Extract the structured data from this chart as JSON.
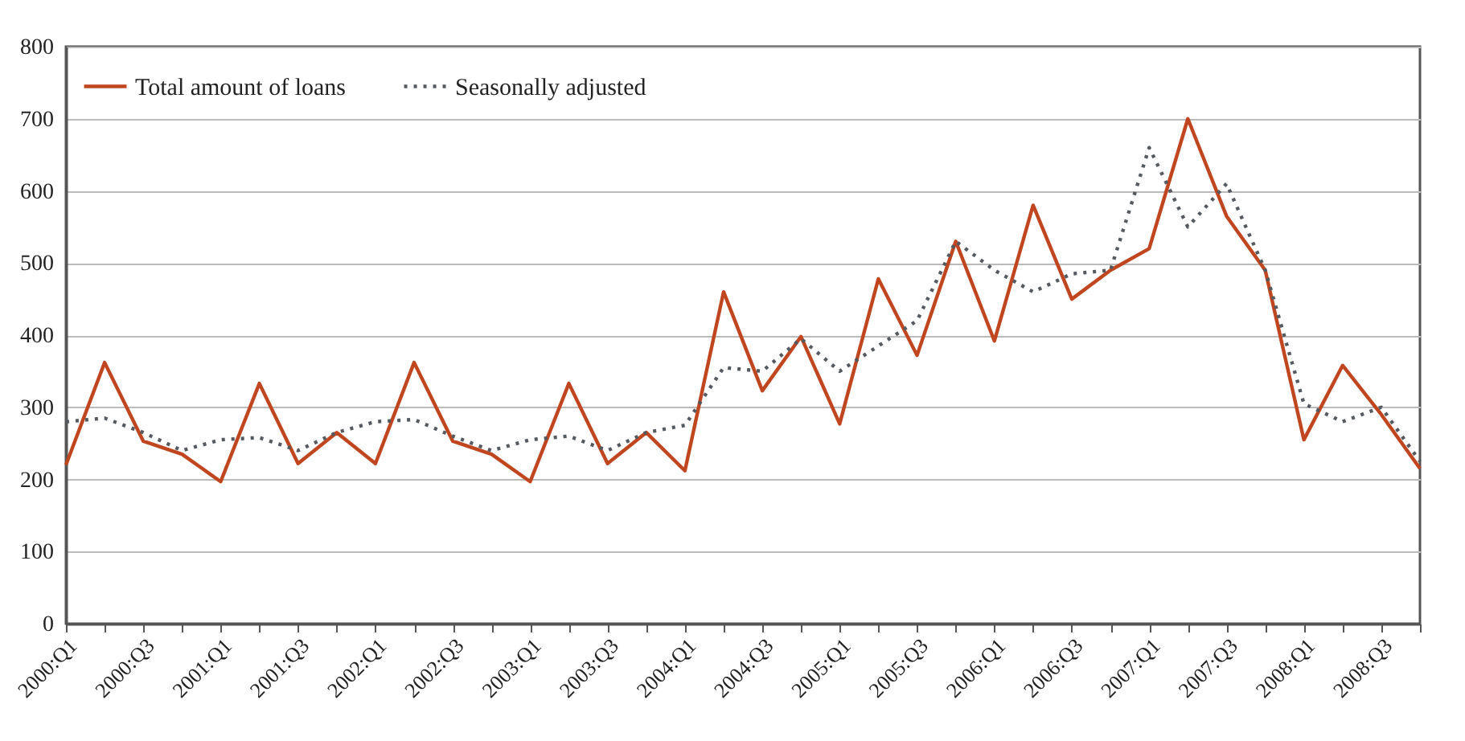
{
  "chart_data": {
    "type": "line",
    "categories": [
      "2000:Q1",
      null,
      "2000:Q3",
      null,
      "2001:Q1",
      null,
      "2001:Q3",
      null,
      "2002:Q1",
      null,
      "2002:Q3",
      null,
      "2003:Q1",
      null,
      "2003:Q3",
      null,
      "2004:Q1",
      null,
      "2004:Q3",
      null,
      "2005:Q1",
      null,
      "2005:Q3",
      null,
      "2006:Q1",
      null,
      "2006:Q3",
      null,
      "2007:Q1",
      null,
      "2007:Q3",
      null,
      "2008:Q1",
      null,
      "2008:Q3",
      null
    ],
    "series": [
      {
        "name": "Total amount of loans",
        "color": "#c0461f",
        "line_style": "solid",
        "values": [
          220,
          362,
          253,
          235,
          197,
          333,
          222,
          265,
          222,
          362,
          253,
          235,
          197,
          333,
          222,
          265,
          212,
          460,
          323,
          398,
          277,
          478,
          372,
          530,
          392,
          580,
          450,
          490,
          520,
          700,
          565,
          490,
          255,
          358,
          290,
          215
        ]
      },
      {
        "name": "Seasonally adjusted",
        "color": "#555a60",
        "line_style": "dotted",
        "values": [
          280,
          285,
          265,
          240,
          255,
          258,
          240,
          265,
          280,
          283,
          260,
          240,
          255,
          260,
          240,
          265,
          275,
          355,
          350,
          395,
          350,
          385,
          420,
          530,
          490,
          460,
          485,
          490,
          660,
          550,
          610,
          490,
          305,
          280,
          300,
          225
        ]
      }
    ],
    "ylim": [
      0,
      800
    ],
    "yticks": [
      0,
      100,
      200,
      300,
      400,
      500,
      600,
      700,
      800
    ],
    "grid": "y",
    "legend": "top left"
  }
}
